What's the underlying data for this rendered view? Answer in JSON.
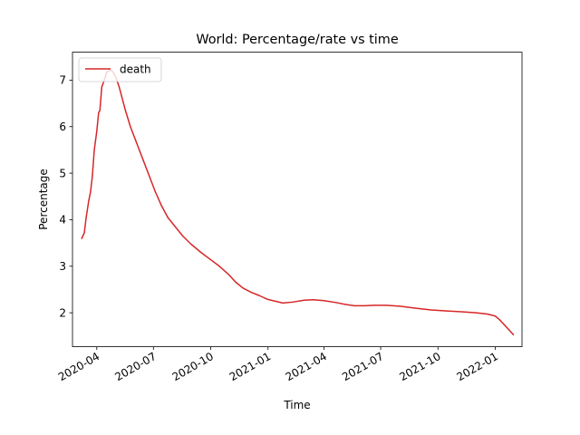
{
  "chart_data": {
    "type": "line",
    "title": "World: Percentage/rate vs time",
    "xlabel": "Time",
    "ylabel": "Percentage",
    "x_ticks": [
      "2020-04",
      "2020-07",
      "2020-10",
      "2021-01",
      "2021-04",
      "2021-07",
      "2021-10",
      "2022-01"
    ],
    "y_ticks": [
      2,
      3,
      4,
      5,
      6,
      7
    ],
    "xlim": [
      "2020-02-22",
      "2022-02-13"
    ],
    "ylim": [
      1.27,
      7.6
    ],
    "grid": false,
    "legend_position": "top-left",
    "series": [
      {
        "name": "death",
        "color": "#d62728",
        "points": [
          [
            "2020-03-08",
            3.6
          ],
          [
            "2020-03-12",
            3.72
          ],
          [
            "2020-03-15",
            4.05
          ],
          [
            "2020-03-19",
            4.4
          ],
          [
            "2020-03-22",
            4.6
          ],
          [
            "2020-03-25",
            4.95
          ],
          [
            "2020-03-28",
            5.5
          ],
          [
            "2020-04-01",
            5.9
          ],
          [
            "2020-04-04",
            6.3
          ],
          [
            "2020-04-06",
            6.35
          ],
          [
            "2020-04-09",
            6.85
          ],
          [
            "2020-04-13",
            7.0
          ],
          [
            "2020-04-17",
            7.17
          ],
          [
            "2020-04-22",
            7.22
          ],
          [
            "2020-04-27",
            7.18
          ],
          [
            "2020-05-02",
            7.05
          ],
          [
            "2020-05-07",
            6.85
          ],
          [
            "2020-05-12",
            6.6
          ],
          [
            "2020-05-17",
            6.35
          ],
          [
            "2020-05-25",
            6.0
          ],
          [
            "2020-06-04",
            5.65
          ],
          [
            "2020-06-14",
            5.3
          ],
          [
            "2020-06-24",
            4.95
          ],
          [
            "2020-07-04",
            4.6
          ],
          [
            "2020-07-14",
            4.3
          ],
          [
            "2020-07-24",
            4.05
          ],
          [
            "2020-08-05",
            3.85
          ],
          [
            "2020-08-17",
            3.65
          ],
          [
            "2020-08-30",
            3.48
          ],
          [
            "2020-09-15",
            3.3
          ],
          [
            "2020-09-30",
            3.15
          ],
          [
            "2020-10-15",
            3.0
          ],
          [
            "2020-10-30",
            2.82
          ],
          [
            "2020-11-10",
            2.66
          ],
          [
            "2020-11-22",
            2.53
          ],
          [
            "2020-12-05",
            2.44
          ],
          [
            "2020-12-18",
            2.37
          ],
          [
            "2020-12-31",
            2.29
          ],
          [
            "2021-01-12",
            2.25
          ],
          [
            "2021-01-25",
            2.21
          ],
          [
            "2021-02-10",
            2.23
          ],
          [
            "2021-02-28",
            2.27
          ],
          [
            "2021-03-15",
            2.28
          ],
          [
            "2021-04-01",
            2.26
          ],
          [
            "2021-04-20",
            2.22
          ],
          [
            "2021-05-05",
            2.18
          ],
          [
            "2021-05-20",
            2.15
          ],
          [
            "2021-06-05",
            2.15
          ],
          [
            "2021-06-20",
            2.16
          ],
          [
            "2021-07-10",
            2.16
          ],
          [
            "2021-08-01",
            2.14
          ],
          [
            "2021-08-25",
            2.1
          ],
          [
            "2021-09-20",
            2.06
          ],
          [
            "2021-10-15",
            2.04
          ],
          [
            "2021-11-10",
            2.02
          ],
          [
            "2021-12-01",
            2.0
          ],
          [
            "2021-12-20",
            1.97
          ],
          [
            "2022-01-01",
            1.93
          ],
          [
            "2022-01-08",
            1.85
          ],
          [
            "2022-01-15",
            1.75
          ],
          [
            "2022-01-22",
            1.65
          ],
          [
            "2022-01-30",
            1.53
          ]
        ]
      }
    ]
  }
}
